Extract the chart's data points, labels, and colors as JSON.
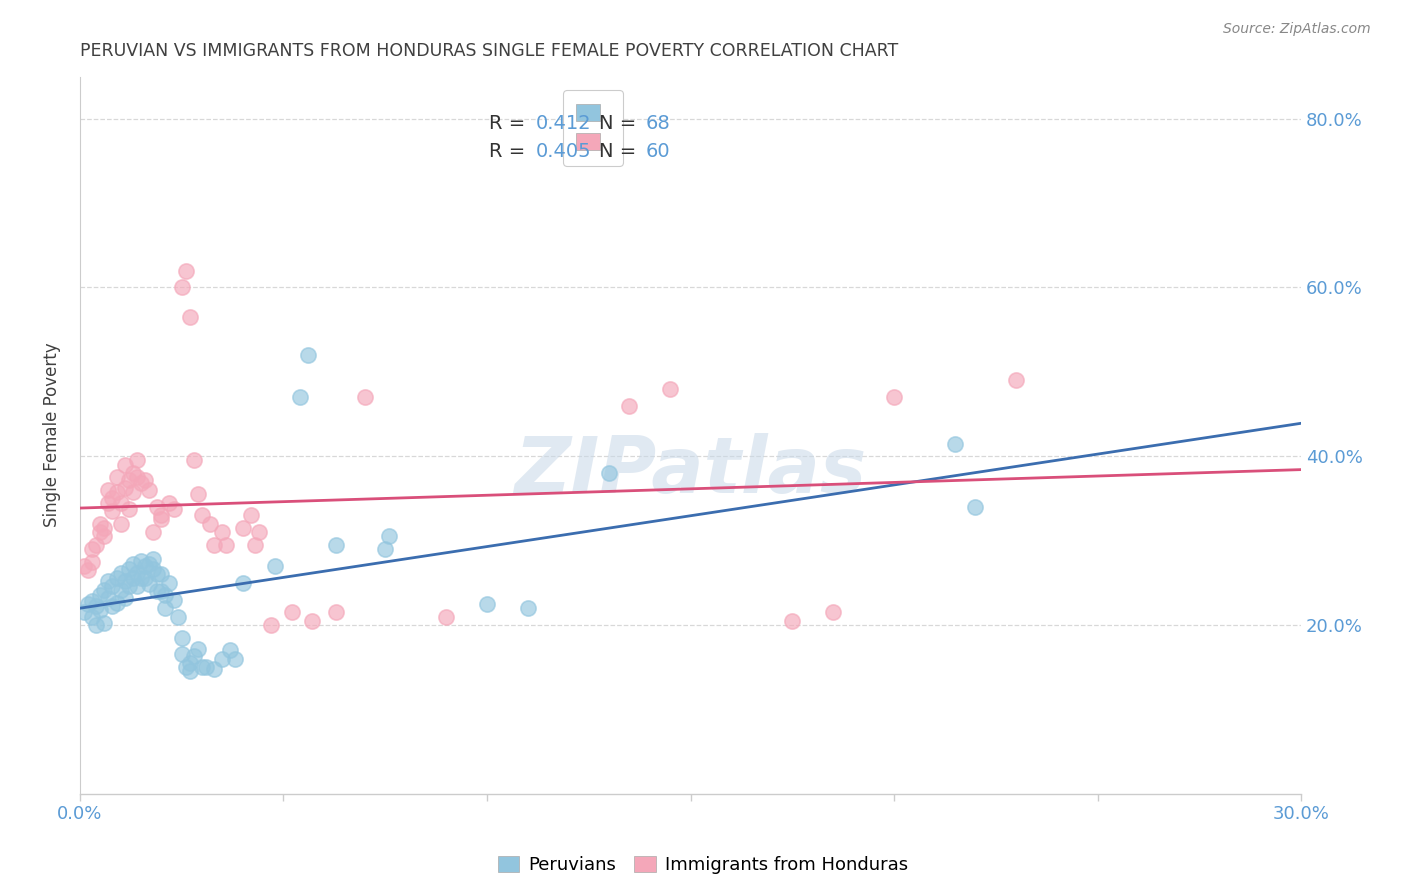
{
  "title": "PERUVIAN VS IMMIGRANTS FROM HONDURAS SINGLE FEMALE POVERTY CORRELATION CHART",
  "source": "Source: ZipAtlas.com",
  "ylabel": "Single Female Poverty",
  "ylabel_right_ticks": [
    "20.0%",
    "40.0%",
    "60.0%",
    "80.0%"
  ],
  "ylabel_right_vals": [
    0.2,
    0.4,
    0.6,
    0.8
  ],
  "watermark": "ZIPatlas",
  "legend_blue_r": "0.412",
  "legend_blue_n": "68",
  "legend_pink_r": "0.405",
  "legend_pink_n": "60",
  "blue_color": "#92c5de",
  "pink_color": "#f4a7b9",
  "blue_line_color": "#3b6daf",
  "pink_line_color": "#d94f7a",
  "blue_scatter": [
    [
      0.001,
      0.215
    ],
    [
      0.002,
      0.225
    ],
    [
      0.003,
      0.21
    ],
    [
      0.003,
      0.228
    ],
    [
      0.004,
      0.222
    ],
    [
      0.004,
      0.2
    ],
    [
      0.005,
      0.235
    ],
    [
      0.005,
      0.218
    ],
    [
      0.006,
      0.242
    ],
    [
      0.006,
      0.202
    ],
    [
      0.007,
      0.232
    ],
    [
      0.007,
      0.252
    ],
    [
      0.008,
      0.246
    ],
    [
      0.008,
      0.222
    ],
    [
      0.009,
      0.226
    ],
    [
      0.009,
      0.256
    ],
    [
      0.01,
      0.262
    ],
    [
      0.01,
      0.242
    ],
    [
      0.011,
      0.252
    ],
    [
      0.011,
      0.232
    ],
    [
      0.012,
      0.246
    ],
    [
      0.012,
      0.266
    ],
    [
      0.013,
      0.272
    ],
    [
      0.013,
      0.256
    ],
    [
      0.014,
      0.262
    ],
    [
      0.014,
      0.246
    ],
    [
      0.015,
      0.256
    ],
    [
      0.015,
      0.276
    ],
    [
      0.016,
      0.27
    ],
    [
      0.016,
      0.256
    ],
    [
      0.017,
      0.272
    ],
    [
      0.017,
      0.248
    ],
    [
      0.018,
      0.266
    ],
    [
      0.018,
      0.278
    ],
    [
      0.019,
      0.26
    ],
    [
      0.019,
      0.24
    ],
    [
      0.02,
      0.26
    ],
    [
      0.02,
      0.24
    ],
    [
      0.021,
      0.235
    ],
    [
      0.021,
      0.22
    ],
    [
      0.022,
      0.25
    ],
    [
      0.023,
      0.23
    ],
    [
      0.024,
      0.21
    ],
    [
      0.025,
      0.185
    ],
    [
      0.025,
      0.165
    ],
    [
      0.026,
      0.15
    ],
    [
      0.027,
      0.155
    ],
    [
      0.027,
      0.145
    ],
    [
      0.028,
      0.163
    ],
    [
      0.029,
      0.172
    ],
    [
      0.03,
      0.15
    ],
    [
      0.031,
      0.15
    ],
    [
      0.033,
      0.148
    ],
    [
      0.035,
      0.16
    ],
    [
      0.037,
      0.17
    ],
    [
      0.038,
      0.16
    ],
    [
      0.04,
      0.25
    ],
    [
      0.048,
      0.27
    ],
    [
      0.054,
      0.47
    ],
    [
      0.056,
      0.52
    ],
    [
      0.063,
      0.295
    ],
    [
      0.075,
      0.29
    ],
    [
      0.076,
      0.305
    ],
    [
      0.1,
      0.225
    ],
    [
      0.11,
      0.22
    ],
    [
      0.13,
      0.38
    ],
    [
      0.215,
      0.415
    ],
    [
      0.22,
      0.34
    ]
  ],
  "pink_scatter": [
    [
      0.001,
      0.27
    ],
    [
      0.002,
      0.265
    ],
    [
      0.003,
      0.275
    ],
    [
      0.003,
      0.29
    ],
    [
      0.004,
      0.295
    ],
    [
      0.005,
      0.31
    ],
    [
      0.005,
      0.32
    ],
    [
      0.006,
      0.305
    ],
    [
      0.006,
      0.315
    ],
    [
      0.007,
      0.345
    ],
    [
      0.007,
      0.36
    ],
    [
      0.008,
      0.335
    ],
    [
      0.008,
      0.35
    ],
    [
      0.009,
      0.358
    ],
    [
      0.009,
      0.375
    ],
    [
      0.01,
      0.32
    ],
    [
      0.01,
      0.345
    ],
    [
      0.011,
      0.362
    ],
    [
      0.011,
      0.39
    ],
    [
      0.012,
      0.372
    ],
    [
      0.012,
      0.338
    ],
    [
      0.013,
      0.38
    ],
    [
      0.013,
      0.358
    ],
    [
      0.014,
      0.395
    ],
    [
      0.014,
      0.375
    ],
    [
      0.015,
      0.368
    ],
    [
      0.016,
      0.372
    ],
    [
      0.017,
      0.36
    ],
    [
      0.018,
      0.31
    ],
    [
      0.019,
      0.34
    ],
    [
      0.02,
      0.33
    ],
    [
      0.02,
      0.325
    ],
    [
      0.022,
      0.345
    ],
    [
      0.023,
      0.338
    ],
    [
      0.025,
      0.6
    ],
    [
      0.026,
      0.62
    ],
    [
      0.027,
      0.565
    ],
    [
      0.028,
      0.395
    ],
    [
      0.029,
      0.355
    ],
    [
      0.03,
      0.33
    ],
    [
      0.032,
      0.32
    ],
    [
      0.033,
      0.295
    ],
    [
      0.035,
      0.31
    ],
    [
      0.036,
      0.295
    ],
    [
      0.04,
      0.315
    ],
    [
      0.042,
      0.33
    ],
    [
      0.043,
      0.295
    ],
    [
      0.044,
      0.31
    ],
    [
      0.047,
      0.2
    ],
    [
      0.052,
      0.215
    ],
    [
      0.057,
      0.205
    ],
    [
      0.063,
      0.215
    ],
    [
      0.07,
      0.47
    ],
    [
      0.09,
      0.21
    ],
    [
      0.135,
      0.46
    ],
    [
      0.145,
      0.48
    ],
    [
      0.175,
      0.205
    ],
    [
      0.185,
      0.215
    ],
    [
      0.2,
      0.47
    ],
    [
      0.23,
      0.49
    ]
  ],
  "x_min": 0.0,
  "x_max": 0.3,
  "y_min": 0.0,
  "y_max": 0.85,
  "background_color": "#ffffff",
  "grid_color": "#d8d8d8",
  "title_color": "#404040",
  "tick_color": "#5b9bd5",
  "label_dark": "#333333",
  "legend_label_blue": "Peruvians",
  "legend_label_pink": "Immigrants from Honduras"
}
